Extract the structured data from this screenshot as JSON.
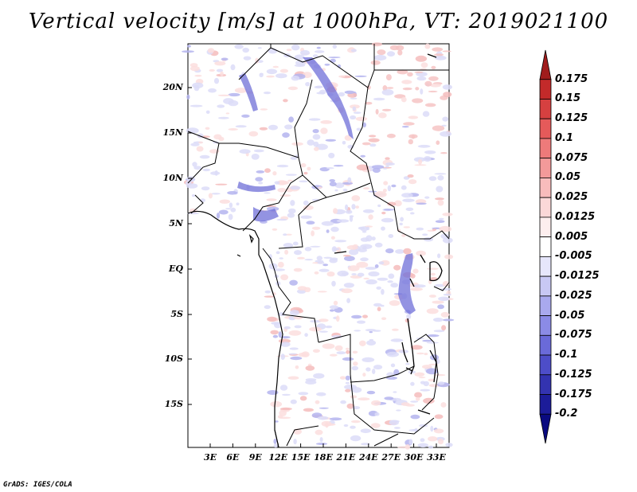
{
  "title": "Vertical velocity [m/s] at 1000hPa, VT: 2019021100",
  "credit": "GrADS: IGES/COLA",
  "map": {
    "lat_labels": [
      "20N",
      "15N",
      "10N",
      "5N",
      "EQ",
      "5S",
      "10S",
      "15S"
    ],
    "lon_labels": [
      "3E",
      "6E",
      "9E",
      "12E",
      "15E",
      "18E",
      "21E",
      "24E",
      "27E",
      "30E",
      "33E"
    ],
    "lat_range": [
      -20,
      24.5
    ],
    "lon_range": [
      0,
      35
    ],
    "background": "#ffffff",
    "land_border_color": "#000000"
  },
  "colorbar": {
    "labels": [
      "0.175",
      "0.15",
      "0.125",
      "0.1",
      "0.075",
      "0.05",
      "0.025",
      "0.0125",
      "0.005",
      "-0.005",
      "-0.0125",
      "-0.025",
      "-0.05",
      "-0.075",
      "-0.1",
      "-0.125",
      "-0.175",
      "-0.2"
    ],
    "colors": [
      "#a01c1c",
      "#c32a2a",
      "#d64040",
      "#e55a5a",
      "#ee7a7a",
      "#f39a9a",
      "#f8bcbc",
      "#fbd8d8",
      "#fdeeee",
      "#ffffff",
      "#e6e6fb",
      "#c8c8f4",
      "#a9a9ee",
      "#8b8be6",
      "#6a6ad9",
      "#4d4dc8",
      "#3333b0",
      "#1c1c99",
      "#0a0a80"
    ]
  }
}
